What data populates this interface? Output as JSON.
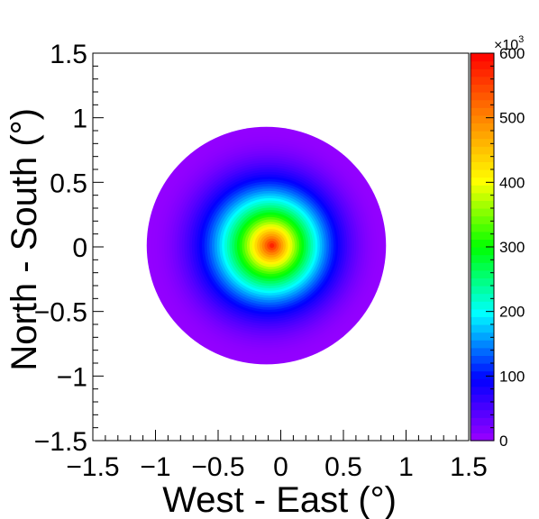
{
  "chart_data": {
    "type": "heatmap",
    "title": "",
    "xlabel": "West - East (°)",
    "ylabel": "North - South (°)",
    "xlim": [
      -1.5,
      1.5
    ],
    "ylim": [
      -1.5,
      1.5
    ],
    "x_ticks": [
      {
        "value": -1.5,
        "label": "−1.5"
      },
      {
        "value": -1,
        "label": "−1"
      },
      {
        "value": -0.5,
        "label": "−0.5"
      },
      {
        "value": 0,
        "label": "0"
      },
      {
        "value": 0.5,
        "label": "0.5"
      },
      {
        "value": 1,
        "label": "1"
      },
      {
        "value": 1.5,
        "label": "1.5"
      }
    ],
    "y_ticks": [
      {
        "value": -1.5,
        "label": "−1.5"
      },
      {
        "value": -1,
        "label": "−1"
      },
      {
        "value": -0.5,
        "label": "−0.5"
      },
      {
        "value": 0,
        "label": "0"
      },
      {
        "value": 0.5,
        "label": "0.5"
      },
      {
        "value": 1,
        "label": "1"
      },
      {
        "value": 1.5,
        "label": "1.5"
      }
    ],
    "colorbar": {
      "min": 0,
      "max": 600,
      "multiplier_label": "×10",
      "multiplier_exponent": "3",
      "ticks": [
        {
          "value": 0,
          "label": "0"
        },
        {
          "value": 100,
          "label": "100"
        },
        {
          "value": 200,
          "label": "200"
        },
        {
          "value": 300,
          "label": "300"
        },
        {
          "value": 400,
          "label": "400"
        },
        {
          "value": 500,
          "label": "500"
        },
        {
          "value": 600,
          "label": "600"
        }
      ],
      "palette": "rainbow (violet → blue → cyan → green → yellow → orange → red)"
    },
    "distribution": {
      "shape": "2D peaked map (approx. radial)",
      "peak_center": [
        -0.07,
        0.01
      ],
      "peak_value": 600,
      "edge_value": 5,
      "edge_radius_x": [
        -1.07,
        0.84
      ],
      "edge_radius_y": [
        -0.91,
        0.93
      ]
    },
    "grid": false,
    "legend": "colorbar-right"
  }
}
